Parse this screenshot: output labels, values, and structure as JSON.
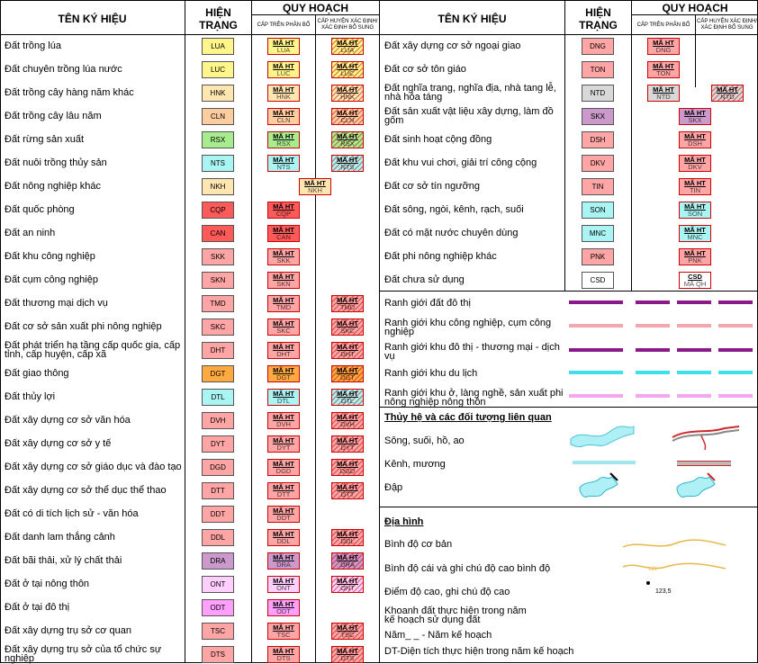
{
  "headers": {
    "name": "TÊN KÝ HIỆU",
    "current": "HIỆN TRẠNG",
    "planning": "QUY HOẠCH",
    "upper": "CẤP TRÊN PHÂN BỔ",
    "district": "CẤP HUYỆN XÁC ĐỊNH/ XÁC ĐỊNH BỔ SUNG"
  },
  "plan_label": "MÃ HT",
  "left_rows": [
    {
      "name": "Đất trồng lúa",
      "code": "LUA",
      "color": "#fff58a",
      "upper": true,
      "district": true
    },
    {
      "name": "Đất chuyên trồng lúa nước",
      "code": "LUC",
      "color": "#fff58a",
      "upper": true,
      "district": true
    },
    {
      "name": "Đất trồng cây hàng năm khác",
      "code": "HNK",
      "color": "#ffe6b0",
      "upper": true,
      "district": true
    },
    {
      "name": "Đất trồng cây lâu năm",
      "code": "CLN",
      "color": "#ffcca0",
      "upper": true,
      "district": true
    },
    {
      "name": "Đất rừng sản xuất",
      "code": "RSX",
      "color": "#a8ec90",
      "upper": true,
      "district": true
    },
    {
      "name": "Đất nuôi trồng thủy sản",
      "code": "NTS",
      "color": "#aaf4f4",
      "upper": true,
      "district": true
    },
    {
      "name": "Đất nông nghiệp khác",
      "code": "NKH",
      "color": "#ffe6b0",
      "upper": false,
      "district": false,
      "mid": true
    },
    {
      "name": "Đất quốc phòng",
      "code": "CQP",
      "color": "#ff5a5a",
      "upper": true,
      "district": false
    },
    {
      "name": "Đất an ninh",
      "code": "CAN",
      "color": "#ff5a5a",
      "upper": true,
      "district": false
    },
    {
      "name": "Đất khu công nghiệp",
      "code": "SKK",
      "color": "#ffa5a5",
      "upper": true,
      "district": false
    },
    {
      "name": "Đất cụm công nghiệp",
      "code": "SKN",
      "color": "#ffa5a5",
      "upper": true,
      "district": false
    },
    {
      "name": "Đất thương mại dịch vụ",
      "code": "TMD",
      "color": "#ffa5a5",
      "upper": true,
      "district": true
    },
    {
      "name": "Đất cơ sở sản xuất phi nông nghiệp",
      "code": "SKC",
      "color": "#ffa5a5",
      "upper": true,
      "district": true
    },
    {
      "name": "Đất phát triển hạ tầng cấp quốc gia, cấp tỉnh, cấp huyện, cấp xã",
      "code": "DHT",
      "color": "#ffa5a5",
      "upper": true,
      "district": true
    },
    {
      "name": "Đất giao thông",
      "code": "DGT",
      "color": "#ffaa40",
      "upper": true,
      "district": true
    },
    {
      "name": "Đất thủy lợi",
      "code": "DTL",
      "color": "#aaf4f4",
      "upper": true,
      "district": true
    },
    {
      "name": "Đất xây dựng cơ sở văn hóa",
      "code": "DVH",
      "color": "#ffa5a5",
      "upper": true,
      "district": true
    },
    {
      "name": "Đất xây dựng cơ sở y tế",
      "code": "DYT",
      "color": "#ffa5a5",
      "upper": true,
      "district": true
    },
    {
      "name": "Đất xây dựng cơ sở giáo dục và đào tạo",
      "code": "DGD",
      "color": "#ffa5a5",
      "upper": true,
      "district": true
    },
    {
      "name": "Đất xây dựng cơ sở thể dục thể thao",
      "code": "DTT",
      "color": "#ffa5a5",
      "upper": true,
      "district": true
    },
    {
      "name": "Đất có di tích lịch sử - văn hóa",
      "code": "DDT",
      "color": "#ffa5a5",
      "upper": true,
      "district": false
    },
    {
      "name": "Đất danh lam thắng cảnh",
      "code": "DDL",
      "color": "#ffa5a5",
      "upper": true,
      "district": true
    },
    {
      "name": "Đất bãi thải, xử lý chất thải",
      "code": "DRA",
      "color": "#cc99cc",
      "upper": true,
      "district": true
    },
    {
      "name": "Đất ở tại nông thôn",
      "code": "ONT",
      "color": "#ffd0ff",
      "upper": true,
      "district": true
    },
    {
      "name": "Đất ở tại đô thị",
      "code": "ODT",
      "color": "#ffa0ff",
      "upper": true,
      "district": false
    },
    {
      "name": "Đất xây dựng trụ sở cơ quan",
      "code": "TSC",
      "color": "#ffa5a5",
      "upper": true,
      "district": true
    },
    {
      "name": "Đất xây dựng trụ sở của tổ chức sự nghiệp",
      "code": "DTS",
      "color": "#ffa5a5",
      "upper": true,
      "district": true
    }
  ],
  "right_rows": [
    {
      "name": "Đất xây dựng cơ sở ngoại giao",
      "code": "DNG",
      "color": "#ffa5a5",
      "upper": true,
      "district": false
    },
    {
      "name": "Đất cơ sở tôn giáo",
      "code": "TON",
      "color": "#ffa5a5",
      "upper": true,
      "district": false
    },
    {
      "name": "Đất nghĩa trang, nghĩa địa, nhà tang lễ, nhà hỏa táng",
      "code": "NTD",
      "color": "#d8d8d8",
      "upper": true,
      "district": true
    },
    {
      "name": "Đất sản xuất vật liệu xây dựng, làm đồ gốm",
      "code": "SKX",
      "color": "#cc99cc",
      "upper": false,
      "district": false,
      "mid": true
    },
    {
      "name": "Đất sinh hoạt cộng đồng",
      "code": "DSH",
      "color": "#ffa5a5",
      "upper": false,
      "district": false,
      "mid": true
    },
    {
      "name": "Đất khu vui chơi, giải trí công cộng",
      "code": "DKV",
      "color": "#ffa5a5",
      "upper": false,
      "district": false,
      "mid": true
    },
    {
      "name": "Đất cơ sở tín ngưỡng",
      "code": "TIN",
      "color": "#ffa5a5",
      "upper": false,
      "district": false,
      "mid": true
    },
    {
      "name": "Đất sông, ngòi, kênh, rạch, suối",
      "code": "SON",
      "color": "#aaf4f4",
      "upper": false,
      "district": false,
      "mid": true
    },
    {
      "name": "Đất có mặt nước chuyên dùng",
      "code": "MNC",
      "color": "#aaf4f4",
      "upper": false,
      "district": false,
      "mid": true
    },
    {
      "name": "Đất phi nông nghiệp khác",
      "code": "PNK",
      "color": "#ffa5a5",
      "upper": false,
      "district": false,
      "mid": true
    },
    {
      "name": "Đất chưa sử dụng",
      "code": "CSD",
      "color": "#ffffff",
      "upper": false,
      "district": false,
      "mid": true,
      "csd": true
    }
  ],
  "csd_plan": {
    "t1": "CSD",
    "t2": "MÃ QH"
  },
  "boundaries": [
    {
      "name": "Ranh giới đất đô thị",
      "color": "#8b1a89"
    },
    {
      "name": "Ranh giới khu công nghiệp, cụm công nghiệp",
      "color": "#f2a6b0"
    },
    {
      "name": "Ranh giới khu đô thị - thương mại - dịch vụ",
      "color": "#8b1a89"
    },
    {
      "name": "Ranh giới khu du lịch",
      "color": "#3ee0ec"
    },
    {
      "name": "Ranh giới khu ở, làng nghề, sản xuất phi nông nghiệp nông thôn",
      "color": "#f4a6f0"
    }
  ],
  "hydro": {
    "title": "Thủy hệ và các đối tượng liên quan",
    "items": [
      "Sông, suối, hồ, ao",
      "Kênh, mương",
      "Đập"
    ]
  },
  "terrain": {
    "title": "Địa hình",
    "items": [
      "Bình độ cơ bản",
      "Bình độ cái và ghi chú độ cao bình độ",
      "Điểm độ cao, ghi chú độ cao",
      "Khoanh đất thực hiện trong năm kế hoạch sử dụng đất",
      "Năm_ _ - Năm kế hoạch",
      "DT-Diện tích thực hiện trong năm kế hoạch"
    ],
    "contour_label": "120",
    "elevation": "123,5"
  },
  "colors": {
    "border": "#000000",
    "plan_border": "#cc0000"
  }
}
